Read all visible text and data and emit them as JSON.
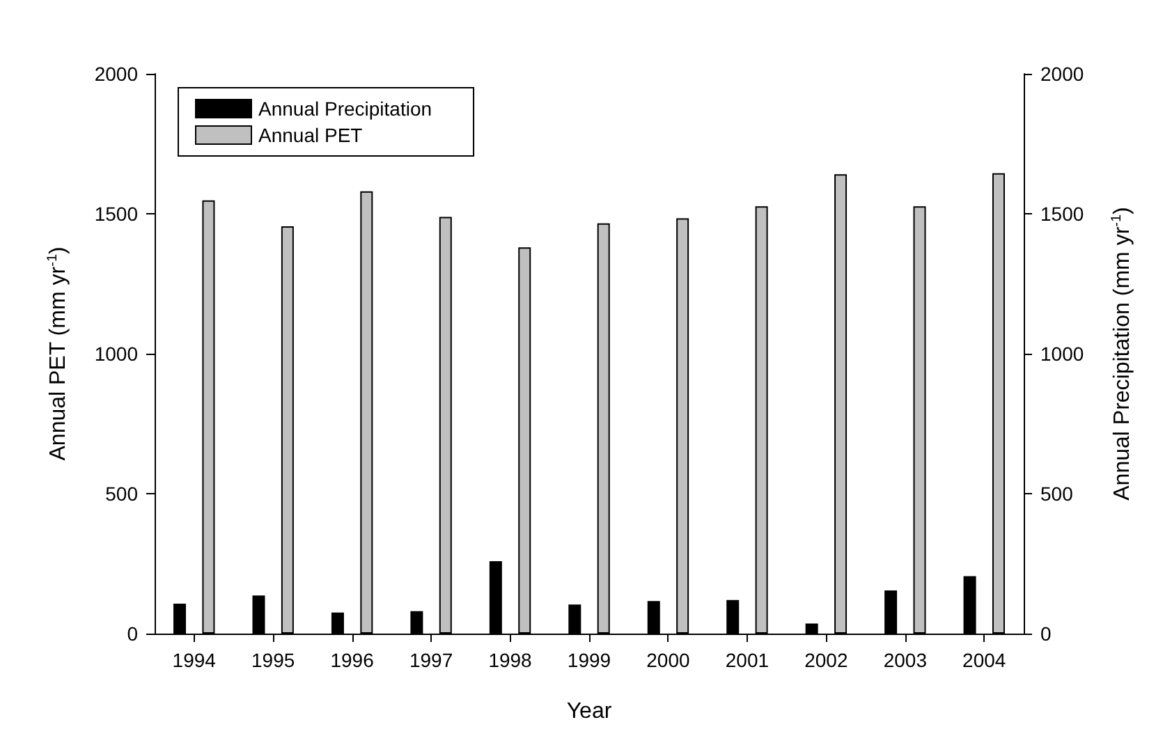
{
  "chart_data": {
    "type": "bar",
    "xlabel": "Year",
    "ylabel": "Annual PET (mm yr$^{-1}$)",
    "y2label": "Annual Precipitation (mm yr$^{-1}$)",
    "categories": [
      "1994",
      "1995",
      "1996",
      "1997",
      "1998",
      "1999",
      "2000",
      "2001",
      "2002",
      "2003",
      "2004"
    ],
    "series": [
      {
        "name": "Annual Precipitation",
        "color": "#000000",
        "axis": "y2",
        "values": [
          107,
          136,
          75,
          80,
          259,
          104,
          116,
          120,
          36,
          154,
          205
        ]
      },
      {
        "name": "Annual PET",
        "color": "#c0c0c0",
        "values": [
          1548,
          1455,
          1580,
          1489,
          1380,
          1466,
          1484,
          1527,
          1641,
          1527,
          1645
        ]
      }
    ],
    "ylim": [
      0,
      2000
    ],
    "yticks": [
      0,
      500,
      1000,
      1500,
      2000
    ],
    "y2lim": [
      0,
      2000
    ],
    "y2ticks": [
      0,
      500,
      1000,
      1500,
      2000
    ],
    "legend": "top left",
    "grid": false
  }
}
